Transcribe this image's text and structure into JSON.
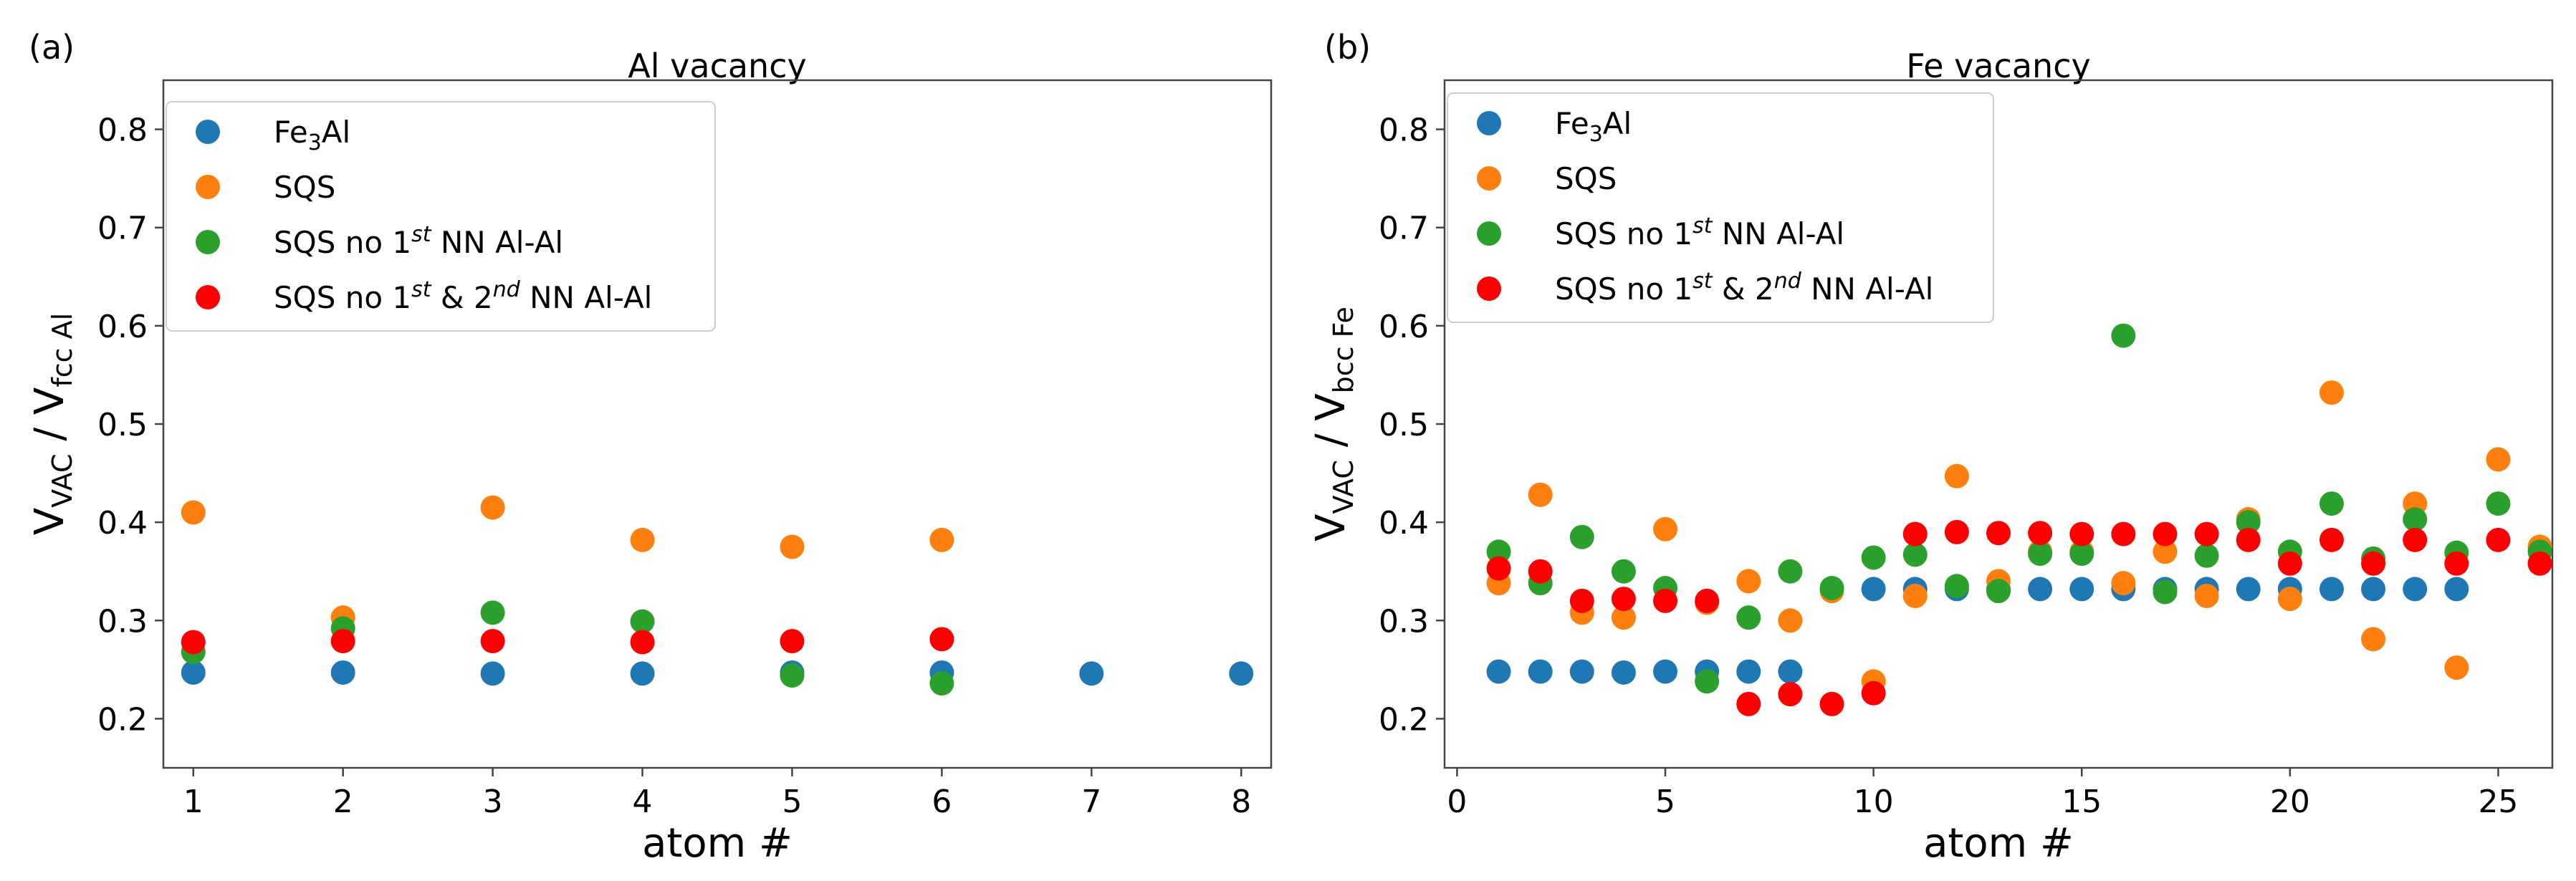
{
  "colors": {
    "fe3al": "#1f77b4",
    "sqs": "#ff7f0e",
    "sqs_no1": "#2ca02c",
    "sqs_no12": "#ff0000",
    "axis": "#444444",
    "legend_border": "#cccccc"
  },
  "chart_data": [
    {
      "type": "scatter",
      "panel_label": "(a)",
      "title": "Al vacancy",
      "xlabel": "atom #",
      "ylabel": {
        "main": "V",
        "sub1": "VAC",
        "mid": " / V",
        "sub2": "fcc Al"
      },
      "xlim": [
        0.8,
        8.2
      ],
      "ylim": [
        0.15,
        0.85
      ],
      "xticks": [
        1,
        2,
        3,
        4,
        5,
        6,
        7,
        8
      ],
      "yticks": [
        0.2,
        0.3,
        0.4,
        0.5,
        0.6,
        0.7,
        0.8
      ],
      "legend_position": "upper-left",
      "series": [
        {
          "key": "fe3al",
          "name": "Fe3Al",
          "label_parts": [
            "Fe",
            "3",
            "Al"
          ],
          "x": [
            1,
            2,
            3,
            4,
            5,
            6,
            7,
            8
          ],
          "y": [
            0.247,
            0.247,
            0.246,
            0.246,
            0.247,
            0.247,
            0.246,
            0.246
          ]
        },
        {
          "key": "sqs",
          "name": "SQS",
          "x": [
            1,
            2,
            3,
            4,
            5,
            6
          ],
          "y": [
            0.41,
            0.303,
            0.415,
            0.382,
            0.375,
            0.382
          ]
        },
        {
          "key": "sqs_no1",
          "name": "SQS no 1st NN Al-Al",
          "x": [
            1,
            2,
            3,
            4,
            5,
            6
          ],
          "y": [
            0.268,
            0.292,
            0.308,
            0.299,
            0.244,
            0.236
          ]
        },
        {
          "key": "sqs_no12",
          "name": "SQS no 1st & 2nd NN Al-Al",
          "x": [
            1,
            2,
            3,
            4,
            5,
            6
          ],
          "y": [
            0.278,
            0.279,
            0.279,
            0.278,
            0.279,
            0.281
          ]
        }
      ]
    },
    {
      "type": "scatter",
      "panel_label": "(b)",
      "title": "Fe vacancy",
      "xlabel": "atom #",
      "ylabel": {
        "main": "V",
        "sub1": "VAC",
        "mid": " / V",
        "sub2": "bcc Fe"
      },
      "xlim": [
        -0.3,
        26.3
      ],
      "ylim": [
        0.15,
        0.85
      ],
      "xticks": [
        0,
        5,
        10,
        15,
        20,
        25
      ],
      "yticks": [
        0.2,
        0.3,
        0.4,
        0.5,
        0.6,
        0.7,
        0.8
      ],
      "legend_position": "upper-left",
      "series": [
        {
          "key": "fe3al",
          "name": "Fe3Al",
          "label_parts": [
            "Fe",
            "3",
            "Al"
          ],
          "x": [
            1,
            2,
            3,
            4,
            5,
            6,
            7,
            8,
            10,
            11,
            12,
            13,
            14,
            15,
            16,
            17,
            18,
            19,
            20,
            21,
            22,
            23,
            24
          ],
          "y": [
            0.248,
            0.248,
            0.248,
            0.247,
            0.248,
            0.248,
            0.248,
            0.248,
            0.332,
            0.332,
            0.332,
            0.332,
            0.332,
            0.332,
            0.332,
            0.332,
            0.332,
            0.332,
            0.332,
            0.332,
            0.332,
            0.332,
            0.332
          ]
        },
        {
          "key": "sqs",
          "name": "SQS",
          "x": [
            1,
            2,
            3,
            4,
            5,
            6,
            7,
            8,
            9,
            10,
            11,
            12,
            13,
            14,
            15,
            16,
            17,
            18,
            19,
            20,
            21,
            22,
            23,
            24,
            25,
            26
          ],
          "y": [
            0.338,
            0.428,
            0.308,
            0.303,
            0.393,
            0.318,
            0.34,
            0.3,
            0.33,
            0.238,
            0.325,
            0.447,
            0.34,
            0.37,
            0.37,
            0.338,
            0.37,
            0.325,
            0.403,
            0.322,
            0.532,
            0.281,
            0.419,
            0.252,
            0.464,
            0.375
          ]
        },
        {
          "key": "sqs_no1",
          "name": "SQS no 1st NN Al-Al",
          "x": [
            1,
            2,
            3,
            4,
            5,
            6,
            7,
            8,
            9,
            10,
            11,
            12,
            13,
            14,
            15,
            16,
            17,
            18,
            19,
            20,
            21,
            22,
            23,
            24,
            25,
            26
          ],
          "y": [
            0.37,
            0.338,
            0.385,
            0.35,
            0.333,
            0.238,
            0.303,
            0.35,
            0.333,
            0.364,
            0.367,
            0.335,
            0.33,
            0.368,
            0.368,
            0.59,
            0.329,
            0.366,
            0.4,
            0.37,
            0.419,
            0.363,
            0.403,
            0.369,
            0.419,
            0.37
          ]
        },
        {
          "key": "sqs_no12",
          "name": "SQS no 1st & 2nd NN Al-Al",
          "x": [
            1,
            2,
            3,
            4,
            5,
            6,
            7,
            8,
            9,
            10,
            11,
            12,
            13,
            14,
            15,
            16,
            17,
            18,
            19,
            20,
            21,
            22,
            23,
            24,
            25,
            26
          ],
          "y": [
            0.353,
            0.35,
            0.32,
            0.322,
            0.32,
            0.32,
            0.215,
            0.225,
            0.215,
            0.226,
            0.388,
            0.39,
            0.389,
            0.389,
            0.388,
            0.388,
            0.388,
            0.388,
            0.382,
            0.358,
            0.382,
            0.358,
            0.382,
            0.358,
            0.382,
            0.358
          ]
        }
      ]
    }
  ]
}
